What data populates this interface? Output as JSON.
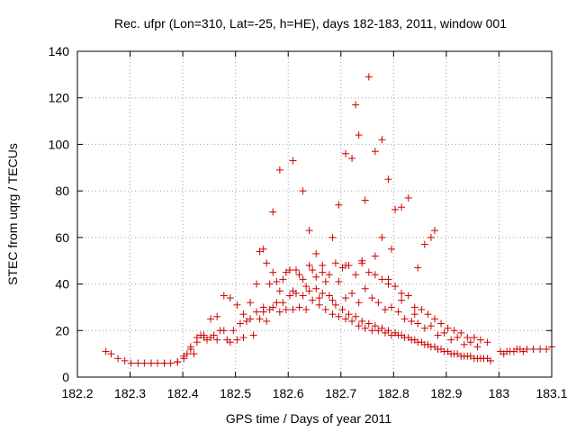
{
  "colors": {
    "marker": "#cc0000",
    "grid": "#a0a0a0",
    "axis": "#000000"
  },
  "chart_data": {
    "type": "scatter",
    "title": "Rec. ufpr (Lon=310, Lat=-25, h=HE), days 182-183, 2011, window 001",
    "xlabel": "GPS time / Days of year 2011",
    "ylabel": "STEC from uqrg / TECUs",
    "xlim": [
      182.2,
      183.1
    ],
    "ylim": [
      0,
      140
    ],
    "xticks": [
      182.2,
      182.3,
      182.4,
      182.5,
      182.6,
      182.7,
      182.8,
      182.9,
      183,
      183.1
    ],
    "xtick_labels": [
      "182.2",
      "182.3",
      "182.4",
      "182.5",
      "182.6",
      "182.7",
      "182.8",
      "182.9",
      "183",
      "183.1"
    ],
    "yticks": [
      0,
      20,
      40,
      60,
      80,
      100,
      120,
      140
    ],
    "ytick_labels": [
      "0",
      "20",
      "40",
      "60",
      "80",
      "100",
      "120",
      "140"
    ],
    "grid": true,
    "marker": "+",
    "series": [
      {
        "x": [
          182.254,
          182.264,
          182.277,
          182.29,
          182.302,
          182.315,
          182.327,
          182.34,
          182.352,
          182.365,
          182.377,
          182.39,
          182.402,
          182.408,
          182.415,
          182.421,
          182.427,
          182.434,
          182.44,
          182.446,
          182.453,
          182.459,
          182.465,
          182.471,
          182.478,
          182.484,
          182.49,
          182.496,
          182.503,
          182.509,
          182.515,
          182.521,
          182.528,
          182.534,
          182.54,
          182.546,
          182.553,
          182.559,
          182.565,
          182.571,
          182.578,
          182.584,
          182.59,
          182.596,
          182.603,
          182.609,
          182.615,
          182.621,
          182.628,
          182.634,
          182.64,
          182.646,
          182.653,
          182.659,
          182.665,
          182.671,
          182.678,
          182.684,
          182.69,
          182.696,
          182.703,
          182.709,
          182.715,
          182.721,
          182.728,
          182.734,
          182.74,
          182.746,
          182.753,
          182.759,
          182.765,
          182.771,
          182.778,
          182.784,
          182.79,
          182.796,
          182.803,
          182.809,
          182.815,
          182.821,
          182.828,
          182.834,
          182.84,
          182.846,
          182.853,
          182.859,
          182.865,
          182.871,
          182.878,
          182.884,
          182.89,
          182.896,
          182.903,
          182.909,
          182.915,
          182.921,
          182.928,
          182.934,
          182.94,
          182.946,
          182.953,
          182.959,
          182.965,
          182.971,
          182.978,
          182.984,
          183.003,
          183.009,
          183.015,
          183.021,
          183.028,
          183.034,
          183.04,
          183.046,
          183.053,
          183.065,
          183.078,
          183.09,
          183.1
        ],
        "y": [
          11,
          10,
          8,
          7,
          6,
          6,
          6,
          6,
          6,
          6,
          6,
          6.5,
          8,
          10,
          12,
          10,
          15,
          18,
          17,
          16,
          17,
          18,
          16,
          20,
          20,
          16,
          15,
          20,
          16,
          23,
          17,
          24,
          25,
          18,
          28,
          25,
          30,
          24,
          29,
          30,
          32,
          28,
          32,
          29,
          35,
          29,
          36,
          30,
          35,
          29,
          37,
          33,
          38,
          31,
          36,
          29,
          35,
          27,
          31,
          26,
          29,
          25,
          27,
          24,
          26,
          22,
          24,
          21,
          23,
          20,
          22,
          20,
          21,
          19,
          20,
          18,
          19,
          18,
          18,
          17,
          17,
          16,
          16,
          15,
          15,
          14,
          14,
          13,
          13,
          12,
          12,
          11,
          11,
          10,
          10,
          10,
          9,
          9,
          9,
          9,
          8,
          8,
          8,
          8,
          8,
          7,
          11,
          10,
          11,
          11,
          11,
          12,
          12,
          11,
          12,
          12,
          12,
          12,
          13
        ]
      },
      {
        "x": [
          182.34,
          182.365,
          182.39,
          182.402,
          182.415,
          182.427,
          182.44,
          182.453,
          182.465,
          182.478,
          182.49,
          182.503,
          182.515,
          182.528,
          182.54,
          182.553,
          182.565,
          182.578,
          182.59,
          182.603,
          182.615,
          182.628,
          182.64,
          182.653,
          182.665,
          182.678,
          182.69,
          182.703,
          182.715,
          182.728,
          182.74,
          182.753,
          182.765,
          182.778,
          182.79,
          182.803,
          182.815,
          182.828,
          182.84,
          182.853,
          182.865,
          182.878,
          182.89,
          182.903,
          182.915,
          182.928,
          182.94,
          182.953,
          182.965,
          182.978
        ],
        "y": [
          6,
          6,
          6.5,
          9,
          13,
          17,
          18,
          25,
          26,
          35,
          34,
          31,
          27,
          32,
          40,
          28,
          40,
          41,
          42,
          46,
          46,
          42,
          48,
          43,
          48,
          44,
          49,
          47,
          48,
          44,
          50,
          45,
          44,
          42,
          40,
          39,
          36,
          35,
          30,
          29,
          27,
          25,
          23,
          21,
          20,
          19,
          17,
          17,
          16,
          15
        ]
      },
      {
        "x": [
          182.546,
          182.559,
          182.571,
          182.584,
          182.596,
          182.609,
          182.621,
          182.634,
          182.646,
          182.659,
          182.671,
          182.684,
          182.696,
          182.709,
          182.721,
          182.734,
          182.746,
          182.759,
          182.771,
          182.784,
          182.796,
          182.809,
          182.821,
          182.834,
          182.846,
          182.859,
          182.871,
          182.884,
          182.896,
          182.909,
          182.921,
          182.934,
          182.946,
          182.959
        ],
        "y": [
          54,
          49,
          45,
          37,
          45,
          37,
          44,
          39,
          46,
          34,
          41,
          33,
          41,
          34,
          36,
          32,
          38,
          34,
          32,
          29,
          30,
          28,
          25,
          24,
          23,
          21,
          22,
          18,
          19,
          16,
          17,
          14,
          15,
          13
        ]
      },
      {
        "x": [
          182.553,
          182.571,
          182.584,
          182.609,
          182.628,
          182.64,
          182.653,
          182.665,
          182.684,
          182.696,
          182.709,
          182.721,
          182.734,
          182.746,
          182.765,
          182.778,
          182.79,
          182.803,
          182.815,
          182.828,
          182.846,
          182.859,
          182.871,
          182.878
        ],
        "y": [
          55,
          71,
          89,
          93,
          80,
          63,
          53,
          45,
          60,
          74,
          96,
          94,
          104,
          76,
          97,
          102,
          85,
          72,
          73,
          77,
          47,
          57,
          60,
          63
        ]
      },
      {
        "x": [
          182.728,
          182.753,
          182.778,
          182.796,
          182.709,
          182.74,
          182.765,
          182.79,
          182.815,
          182.84
        ],
        "y": [
          117,
          129,
          60,
          55,
          48,
          49,
          52,
          42,
          33,
          27
        ]
      }
    ]
  }
}
